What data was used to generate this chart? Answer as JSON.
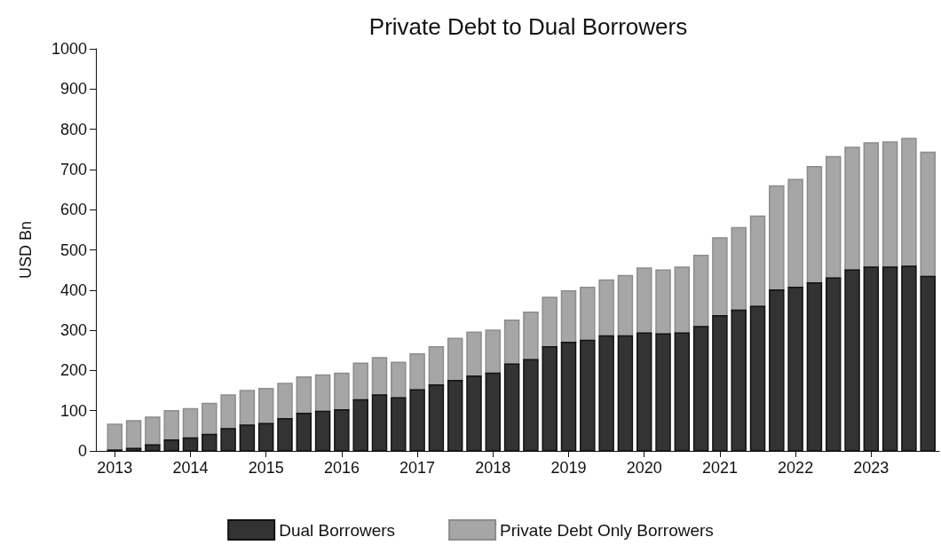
{
  "chart_data": {
    "type": "bar",
    "title": "Private Debt to Dual Borrowers",
    "ylabel": "USD Bn",
    "stacked": true,
    "x": [
      2013,
      2013.25,
      2013.5,
      2013.75,
      2014,
      2014.25,
      2014.5,
      2014.75,
      2015,
      2015.25,
      2015.5,
      2015.75,
      2016,
      2016.25,
      2016.5,
      2016.75,
      2017,
      2017.25,
      2017.5,
      2017.75,
      2018,
      2018.25,
      2018.5,
      2018.75,
      2019,
      2019.25,
      2019.5,
      2019.75,
      2020,
      2020.25,
      2020.5,
      2020.75,
      2021,
      2021.25,
      2021.5,
      2021.75,
      2022,
      2022.25,
      2022.5,
      2022.75,
      2023,
      2023.25,
      2023.5,
      2023.75
    ],
    "series": [
      {
        "name": "Dual Borrowers",
        "color": "#333333",
        "values": [
          2,
          6,
          15,
          27,
          32,
          41,
          55,
          64,
          68,
          80,
          93,
          98,
          102,
          127,
          139,
          132,
          152,
          164,
          175,
          186,
          193,
          216,
          227,
          259,
          270,
          275,
          286,
          286,
          293,
          291,
          293,
          309,
          336,
          350,
          359,
          400,
          407,
          418,
          430,
          450,
          457,
          457,
          459,
          434
        ]
      },
      {
        "name": "Private Debt Only Borrowers",
        "color": "#a6a6a6",
        "values": [
          64,
          69,
          69,
          73,
          73,
          77,
          84,
          86,
          87,
          88,
          91,
          91,
          91,
          91,
          93,
          88,
          89,
          95,
          105,
          109,
          107,
          109,
          118,
          123,
          128,
          132,
          139,
          150,
          162,
          159,
          164,
          177,
          194,
          205,
          225,
          259,
          268,
          289,
          302,
          305,
          309,
          311,
          318,
          309
        ]
      }
    ],
    "xlim": [
      2012.75,
      2023.9
    ],
    "xticks": [
      2013,
      2014,
      2015,
      2016,
      2017,
      2018,
      2019,
      2020,
      2021,
      2022,
      2023
    ],
    "ylim": [
      0,
      1000
    ],
    "yticks": [
      0,
      100,
      200,
      300,
      400,
      500,
      600,
      700,
      800,
      900,
      1000
    ],
    "grid": false,
    "legend": "bottom"
  }
}
